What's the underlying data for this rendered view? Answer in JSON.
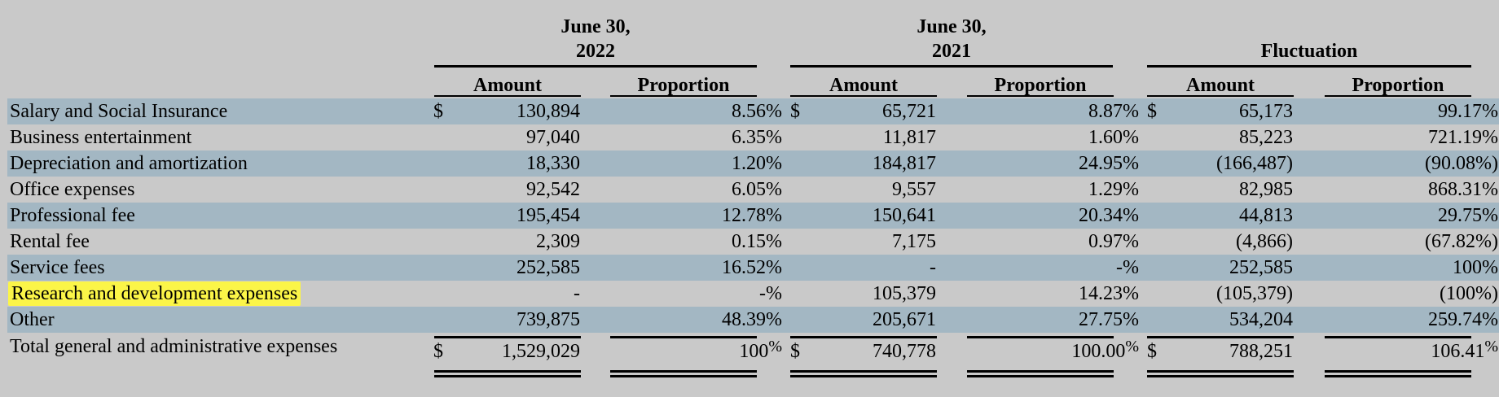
{
  "groups": [
    {
      "line1": "June 30,",
      "line2": "2022"
    },
    {
      "line1": "June 30,",
      "line2": "2021"
    },
    {
      "line1": "",
      "line2": "Fluctuation"
    }
  ],
  "col_headers": {
    "amount": "Amount",
    "proportion": "Proportion"
  },
  "rows": [
    {
      "label": "Salary and Social Insurance",
      "shaded": true,
      "dollar": "$",
      "a2022": "130,894",
      "p2022": "8.56%",
      "a2021": "65,721",
      "p2021": "8.87%",
      "af": "65,173",
      "pf": "99.17%"
    },
    {
      "label": "Business entertainment",
      "shaded": false,
      "dollar": "",
      "a2022": "97,040",
      "p2022": "6.35%",
      "a2021": "11,817",
      "p2021": "1.60%",
      "af": "85,223",
      "pf": "721.19%"
    },
    {
      "label": "Depreciation and amortization",
      "shaded": true,
      "dollar": "",
      "a2022": "18,330",
      "p2022": "1.20%",
      "a2021": "184,817",
      "p2021": "24.95%",
      "af": "(166,487)",
      "pf": "(90.08%)"
    },
    {
      "label": "Office expenses",
      "shaded": false,
      "dollar": "",
      "a2022": "92,542",
      "p2022": "6.05%",
      "a2021": "9,557",
      "p2021": "1.29%",
      "af": "82,985",
      "pf": "868.31%"
    },
    {
      "label": "Professional fee",
      "shaded": true,
      "dollar": "",
      "a2022": "195,454",
      "p2022": "12.78%",
      "a2021": "150,641",
      "p2021": "20.34%",
      "af": "44,813",
      "pf": "29.75%"
    },
    {
      "label": "Rental fee",
      "shaded": false,
      "dollar": "",
      "a2022": "2,309",
      "p2022": "0.15%",
      "a2021": "7,175",
      "p2021": "0.97%",
      "af": "(4,866)",
      "pf": "(67.82%)"
    },
    {
      "label": "Service fees",
      "shaded": true,
      "dollar": "",
      "a2022": "252,585",
      "p2022": "16.52%",
      "a2021": "-",
      "p2021": "-%",
      "af": "252,585",
      "pf": "100%"
    },
    {
      "label": "Research and development expenses",
      "shaded": false,
      "highlight": true,
      "dollar": "",
      "a2022": "-",
      "p2022": "-%",
      "a2021": "105,379",
      "p2021": "14.23%",
      "af": "(105,379)",
      "pf": "(100%)"
    },
    {
      "label": "Other",
      "shaded": true,
      "dollar": "",
      "a2022": "739,875",
      "p2022": "48.39%",
      "a2021": "205,671",
      "p2021": "27.75%",
      "af": "534,204",
      "pf": "259.74%"
    }
  ],
  "total": {
    "label": "Total general and administrative expenses",
    "dollar": "$",
    "a2022": "1,529,029",
    "p2022": "100",
    "a2021": "740,778",
    "p2021": "100.00",
    "af": "788,251",
    "pf": "106.41",
    "pct_sign": "%"
  },
  "colors": {
    "background": "#c9c9c9",
    "row_shade": "#a3b7c3",
    "highlight": "#fbf548"
  }
}
